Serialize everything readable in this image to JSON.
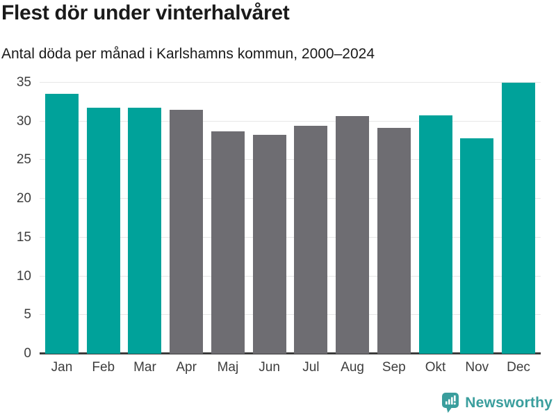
{
  "header": {
    "title": "Flest dör under vinterhalvåret",
    "subtitle": "Antal döda per månad i Karlshamns kommun, 2000–2024"
  },
  "chart_data": {
    "type": "bar",
    "title": "Flest dör under vinterhalvåret",
    "subtitle": "Antal döda per månad i Karlshamns kommun, 2000–2024",
    "categories": [
      "Jan",
      "Feb",
      "Mar",
      "Apr",
      "Maj",
      "Jun",
      "Jul",
      "Aug",
      "Sep",
      "Okt",
      "Nov",
      "Dec"
    ],
    "values": [
      33.6,
      31.8,
      31.8,
      31.5,
      28.7,
      28.3,
      29.4,
      30.7,
      29.2,
      30.8,
      27.8,
      35.0
    ],
    "highlighted": [
      true,
      true,
      true,
      false,
      false,
      false,
      false,
      false,
      false,
      true,
      true,
      true
    ],
    "xlabel": "",
    "ylabel": "",
    "ylim": [
      0,
      35
    ],
    "yticks": [
      0,
      5,
      10,
      15,
      20,
      25,
      30,
      35
    ],
    "grid": "horizontal",
    "legend": "none",
    "colors": {
      "highlight": "#00a29a",
      "base": "#6e6d72",
      "gridline": "#e7e7e7",
      "axis_line": "#3b3b3b",
      "tick_label": "#3d3d3d"
    }
  },
  "footer": {
    "brand": "Newsworthy",
    "brand_color": "#3a9e9d",
    "logo_icon": "newsworthy-speech-bubble-bar-chart-icon"
  }
}
